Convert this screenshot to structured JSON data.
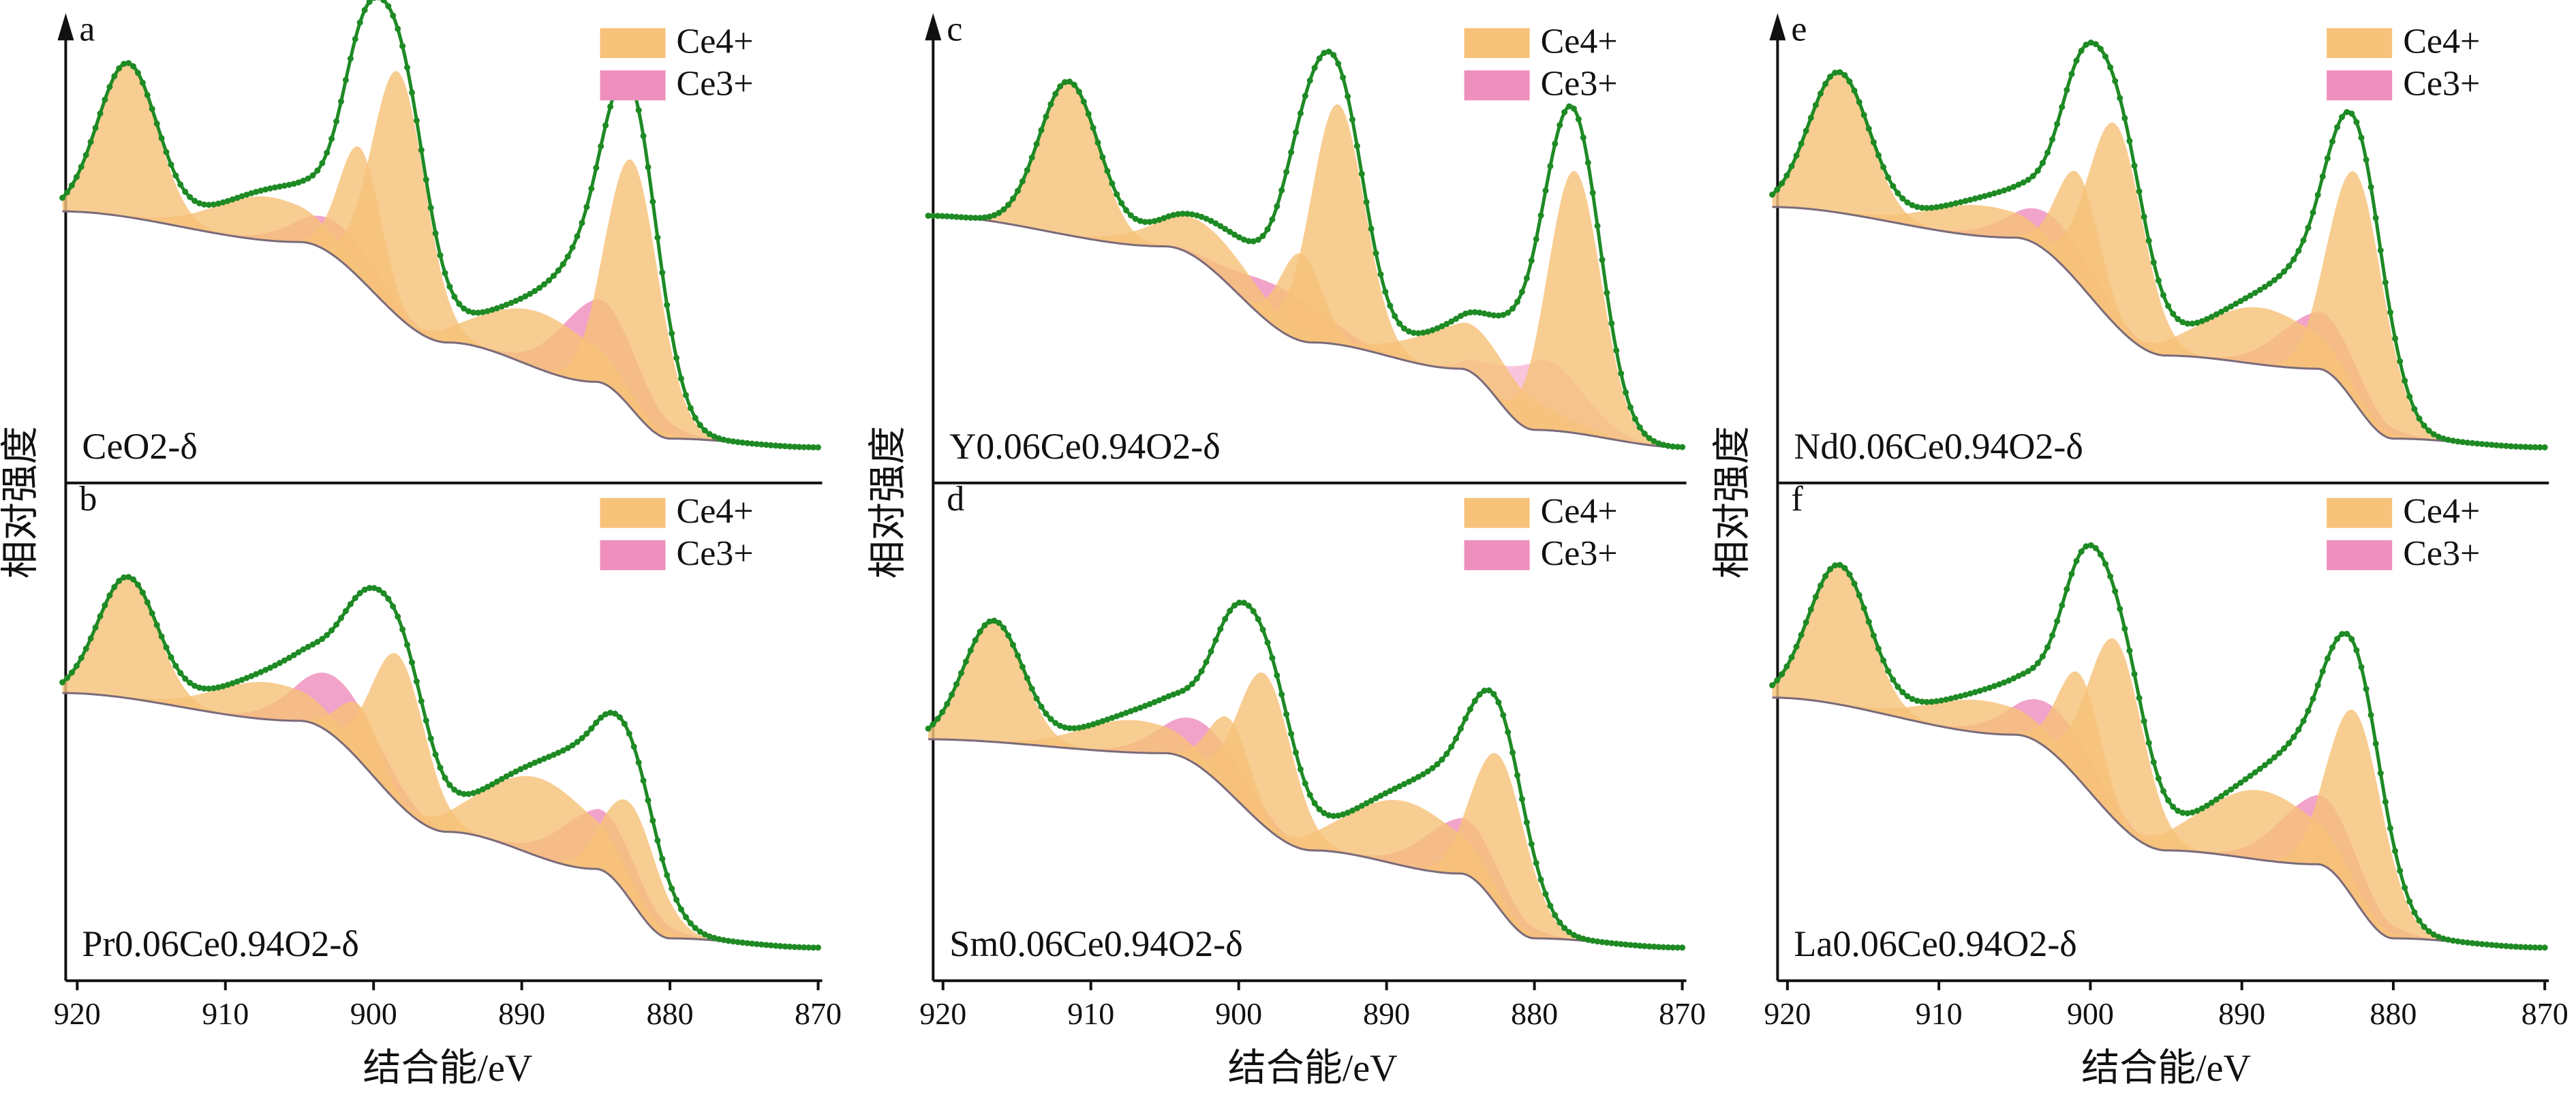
{
  "figure": {
    "x_axis_label": "结合能/eV",
    "y_axis_label": "相对强度",
    "x_ticks": [
      "920",
      "910",
      "900",
      "890",
      "880",
      "870"
    ],
    "legend": [
      "Ce4+",
      "Ce3+"
    ],
    "colors": {
      "ce4": "#f7c27a",
      "ce3": "#ee8fbd",
      "ce3_light": "#f6b8d6",
      "data": "#1e8a24",
      "baseline": "#7a6a7a",
      "axis": "#111111"
    }
  },
  "chart_data": [
    {
      "panel": "a",
      "sample": "CeO2-δ",
      "type": "area",
      "xlabel": "结合能/eV",
      "xlim": [
        921,
        870
      ],
      "x_reversed": true,
      "ylabel": "相对强度",
      "series_names": [
        "Ce4+",
        "Ce3+"
      ],
      "baseline": {
        "x": [
          921,
          905,
          895,
          885,
          880,
          870
        ],
        "y": [
          0.6,
          0.53,
          0.3,
          0.21,
          0.08,
          0.06
        ]
      },
      "ce4_peaks": [
        {
          "center": 916.6,
          "height": 0.35,
          "width": 2.0
        },
        {
          "center": 907.2,
          "height": 0.1,
          "width": 3.5
        },
        {
          "center": 900.9,
          "height": 0.3,
          "width": 1.4
        },
        {
          "center": 898.3,
          "height": 0.56,
          "width": 1.8
        },
        {
          "center": 888.7,
          "height": 0.13,
          "width": 3.8
        },
        {
          "center": 882.5,
          "height": 0.57,
          "width": 1.8
        }
      ],
      "ce3_peaks": [
        {
          "center": 902.3,
          "height": 0.08,
          "width": 2.8
        },
        {
          "center": 884.7,
          "height": 0.19,
          "width": 2.6
        }
      ]
    },
    {
      "panel": "b",
      "sample": "Pr0.06Ce0.94O2-δ",
      "type": "area",
      "xlabel": "结合能/eV",
      "xlim": [
        921,
        870
      ],
      "x_reversed": true,
      "ylabel": "相对强度",
      "series_names": [
        "Ce4+",
        "Ce3+"
      ],
      "baseline": {
        "x": [
          921,
          905,
          895,
          885,
          880,
          870
        ],
        "y": [
          0.6,
          0.54,
          0.3,
          0.22,
          0.07,
          0.05
        ]
      },
      "ce4_peaks": [
        {
          "center": 916.6,
          "height": 0.26,
          "width": 2.0
        },
        {
          "center": 907.2,
          "height": 0.08,
          "width": 3.5
        },
        {
          "center": 900.9,
          "height": 0.12,
          "width": 1.4
        },
        {
          "center": 898.3,
          "height": 0.32,
          "width": 1.8
        },
        {
          "center": 888.7,
          "height": 0.17,
          "width": 3.8
        },
        {
          "center": 882.5,
          "height": 0.21,
          "width": 1.8
        }
      ],
      "ce3_peaks": [
        {
          "center": 902.3,
          "height": 0.13,
          "width": 2.8
        },
        {
          "center": 884.7,
          "height": 0.13,
          "width": 2.6
        }
      ]
    },
    {
      "panel": "c",
      "sample": "Y0.06Ce0.94O2-δ",
      "type": "area",
      "xlabel": "结合能/eV",
      "xlim": [
        921,
        870
      ],
      "x_reversed": true,
      "ylabel": "相对强度",
      "series_names": [
        "Ce4+",
        "Ce3+"
      ],
      "baseline": {
        "x": [
          921,
          905,
          895,
          885,
          880,
          870
        ],
        "y": [
          0.59,
          0.52,
          0.3,
          0.24,
          0.1,
          0.06
        ]
      },
      "ce4_peaks": [
        {
          "center": 911.5,
          "height": 0.35,
          "width": 2.0
        },
        {
          "center": 902.0,
          "height": 0.09,
          "width": 3.5
        },
        {
          "center": 895.8,
          "height": 0.2,
          "width": 1.4
        },
        {
          "center": 893.3,
          "height": 0.55,
          "width": 1.8
        },
        {
          "center": 883.8,
          "height": 0.11,
          "width": 3.8
        },
        {
          "center": 877.3,
          "height": 0.6,
          "width": 1.8
        }
      ],
      "ce3_peaks": [
        {
          "center": 896.8,
          "height": 0.1,
          "width": 2.8
        },
        {
          "center": 879.4,
          "height": 0.16,
          "width": 2.6
        }
      ]
    },
    {
      "panel": "d",
      "sample": "Sm0.06Ce0.94O2-δ",
      "type": "area",
      "xlabel": "结合能/eV",
      "xlim": [
        921,
        870
      ],
      "x_reversed": true,
      "ylabel": "相对强度",
      "series_names": [
        "Ce4+",
        "Ce3+"
      ],
      "baseline": {
        "x": [
          921,
          905,
          895,
          885,
          880,
          870
        ],
        "y": [
          0.5,
          0.47,
          0.26,
          0.21,
          0.07,
          0.05
        ]
      },
      "ce4_peaks": [
        {
          "center": 916.6,
          "height": 0.26,
          "width": 2.0
        },
        {
          "center": 907.2,
          "height": 0.07,
          "width": 3.5
        },
        {
          "center": 900.6,
          "height": 0.16,
          "width": 1.4
        },
        {
          "center": 898.2,
          "height": 0.33,
          "width": 1.8
        },
        {
          "center": 888.8,
          "height": 0.14,
          "width": 3.8
        },
        {
          "center": 882.3,
          "height": 0.33,
          "width": 1.8
        }
      ],
      "ce3_peaks": [
        {
          "center": 902.2,
          "height": 0.1,
          "width": 2.8
        },
        {
          "center": 884.8,
          "height": 0.12,
          "width": 2.6
        }
      ]
    },
    {
      "panel": "e",
      "sample": "Nd0.06Ce0.94O2-δ",
      "type": "area",
      "xlabel": "结合能/eV",
      "xlim": [
        921,
        870
      ],
      "x_reversed": true,
      "ylabel": "相对强度",
      "series_names": [
        "Ce4+",
        "Ce3+"
      ],
      "baseline": {
        "x": [
          921,
          905,
          895,
          885,
          880,
          870
        ],
        "y": [
          0.61,
          0.54,
          0.27,
          0.24,
          0.08,
          0.06
        ]
      },
      "ce4_peaks": [
        {
          "center": 916.6,
          "height": 0.32,
          "width": 2.0
        },
        {
          "center": 907.2,
          "height": 0.07,
          "width": 3.5
        },
        {
          "center": 900.8,
          "height": 0.25,
          "width": 1.4
        },
        {
          "center": 898.3,
          "height": 0.46,
          "width": 1.8
        },
        {
          "center": 888.8,
          "height": 0.13,
          "width": 3.8
        },
        {
          "center": 882.4,
          "height": 0.53,
          "width": 1.8
        }
      ],
      "ce3_peaks": [
        {
          "center": 902.3,
          "height": 0.09,
          "width": 2.8
        },
        {
          "center": 884.8,
          "height": 0.13,
          "width": 2.6
        }
      ]
    },
    {
      "panel": "f",
      "sample": "La0.06Ce0.94O2-δ",
      "type": "area",
      "xlabel": "结合能/eV",
      "xlim": [
        921,
        870
      ],
      "x_reversed": true,
      "ylabel": "相对强度",
      "series_names": [
        "Ce4+",
        "Ce3+"
      ],
      "baseline": {
        "x": [
          921,
          905,
          895,
          885,
          880,
          870
        ],
        "y": [
          0.59,
          0.51,
          0.26,
          0.23,
          0.07,
          0.05
        ]
      },
      "ce4_peaks": [
        {
          "center": 916.6,
          "height": 0.3,
          "width": 2.0
        },
        {
          "center": 907.2,
          "height": 0.07,
          "width": 3.5
        },
        {
          "center": 900.7,
          "height": 0.23,
          "width": 1.4
        },
        {
          "center": 898.3,
          "height": 0.39,
          "width": 1.8
        },
        {
          "center": 888.8,
          "height": 0.15,
          "width": 3.8
        },
        {
          "center": 882.4,
          "height": 0.41,
          "width": 1.8
        }
      ],
      "ce3_peaks": [
        {
          "center": 902.3,
          "height": 0.1,
          "width": 2.8
        },
        {
          "center": 884.8,
          "height": 0.15,
          "width": 2.6
        }
      ]
    }
  ]
}
